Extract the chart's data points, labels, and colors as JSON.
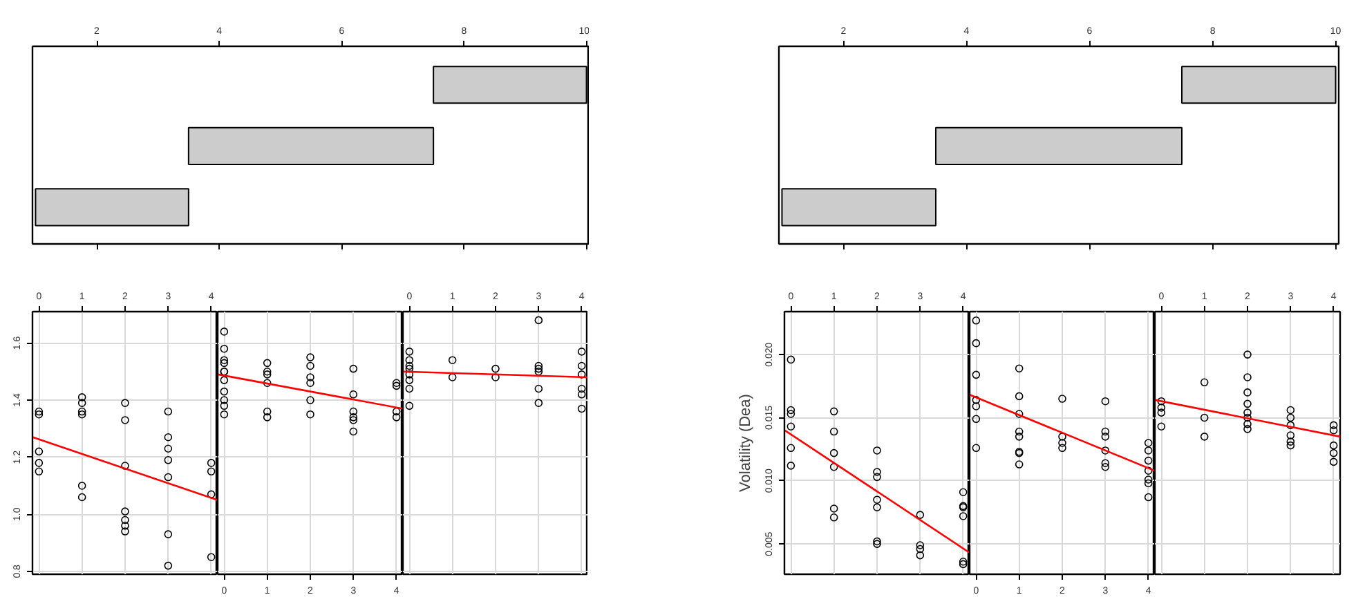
{
  "chart_data": [
    {
      "type": "bar",
      "orientation": "horizontal",
      "categories": [
        null,
        null,
        null
      ],
      "base": [
        7.5,
        3.5,
        1
      ],
      "values": [
        2.5,
        4,
        2.5
      ],
      "color": "#cccccc",
      "xlim": [
        0.95,
        10.05
      ],
      "xticks": [
        2,
        4,
        6,
        8,
        10
      ]
    },
    {
      "type": "bar",
      "orientation": "horizontal",
      "categories": [
        null,
        null,
        null
      ],
      "base": [
        7.5,
        3.5,
        1
      ],
      "values": [
        2.5,
        4,
        2.5
      ],
      "color": "#cccccc",
      "xlim": [
        0.95,
        10.05
      ],
      "xticks": [
        2,
        4,
        6,
        8,
        10
      ]
    },
    {
      "type": "scatter",
      "grid": true,
      "xlim": [
        -0.15,
        4.15
      ],
      "xticks": [
        0,
        1,
        2,
        3,
        4
      ],
      "ylim": [
        0.79,
        1.71
      ],
      "yticks": [
        0.8,
        {
          "value": 1,
          "label": "1.0"
        },
        1.2,
        1.4,
        1.6
      ],
      "series": [
        {
          "type": "scatter",
          "marker": "circle",
          "color": "#000000",
          "x": [
            0,
            0,
            0,
            0,
            0,
            1,
            1,
            1,
            1,
            1,
            1,
            2,
            2,
            2,
            2,
            2,
            2,
            2,
            3,
            3,
            3,
            3,
            3,
            3,
            3,
            4,
            4,
            4,
            4
          ],
          "values": [
            1.36,
            1.35,
            1.22,
            1.18,
            1.15,
            1.41,
            1.39,
            1.36,
            1.35,
            1.1,
            1.06,
            1.39,
            1.33,
            1.17,
            1.01,
            0.98,
            0.96,
            0.94,
            1.36,
            1.27,
            1.23,
            1.19,
            1.13,
            0.93,
            0.82,
            1.18,
            1.15,
            1.07,
            0.85
          ]
        },
        {
          "type": "line",
          "color": "#ff0000",
          "x": [
            -0.14,
            4.15
          ],
          "values": [
            1.27,
            1.05
          ]
        }
      ]
    },
    {
      "type": "scatter",
      "grid": true,
      "tick_labels": "x",
      "xlim": [
        -0.15,
        4.15
      ],
      "xticks": [
        0,
        1,
        2,
        3,
        4
      ],
      "ylim": [
        0.79,
        1.71
      ],
      "yticks": [
        0.8,
        1,
        1.2,
        1.4,
        1.6
      ],
      "series": [
        {
          "type": "scatter",
          "marker": "circle",
          "color": "#000000",
          "x": [
            0,
            0,
            0,
            0,
            0,
            0,
            0,
            0,
            0,
            0,
            0,
            1,
            1,
            1,
            1,
            1,
            1,
            2,
            2,
            2,
            2,
            2,
            2,
            3,
            3,
            3,
            3,
            3,
            3,
            4,
            4,
            4,
            4
          ],
          "values": [
            1.64,
            1.58,
            1.54,
            1.53,
            1.5,
            1.5,
            1.47,
            1.43,
            1.4,
            1.38,
            1.35,
            1.53,
            1.5,
            1.49,
            1.46,
            1.36,
            1.34,
            1.55,
            1.52,
            1.48,
            1.46,
            1.4,
            1.35,
            1.51,
            1.42,
            1.36,
            1.34,
            1.33,
            1.29,
            1.46,
            1.45,
            1.36,
            1.34
          ]
        },
        {
          "type": "line",
          "color": "#ff0000",
          "x": [
            -0.14,
            4.15
          ],
          "values": [
            1.49,
            1.37
          ]
        }
      ]
    },
    {
      "type": "scatter",
      "grid": true,
      "tick_labels": "x",
      "xlim": [
        -0.15,
        4.15
      ],
      "xticks": [
        0,
        1,
        2,
        3,
        4
      ],
      "ylim": [
        0.79,
        1.71
      ],
      "yticks": [
        0.8,
        1,
        1.2,
        1.4,
        1.6
      ],
      "series": [
        {
          "type": "scatter",
          "marker": "circle",
          "color": "#000000",
          "x": [
            0,
            0,
            0,
            0,
            0,
            0,
            0,
            0,
            1,
            1,
            2,
            2,
            3,
            3,
            3,
            3,
            3,
            3,
            4,
            4,
            4,
            4,
            4,
            4
          ],
          "values": [
            1.57,
            1.54,
            1.52,
            1.51,
            1.49,
            1.47,
            1.44,
            1.38,
            1.54,
            1.48,
            1.51,
            1.48,
            1.68,
            1.52,
            1.51,
            1.5,
            1.44,
            1.39,
            1.57,
            1.52,
            1.49,
            1.44,
            1.42,
            1.37
          ]
        },
        {
          "type": "line",
          "color": "#ff0000",
          "x": [
            -0.14,
            4.15
          ],
          "values": [
            1.5,
            1.48
          ]
        }
      ]
    },
    {
      "type": "scatter",
      "grid": true,
      "ylabel": "Volatility (Dea)",
      "xlim": [
        -0.15,
        4.15
      ],
      "xticks": [
        0,
        1,
        2,
        3,
        4
      ],
      "ylim": [
        0.0026,
        0.0234
      ],
      "yticks": [
        0.005,
        {
          "value": 0.01,
          "label": "0.010"
        },
        0.015,
        {
          "value": 0.02,
          "label": "0.020"
        }
      ],
      "series": [
        {
          "type": "scatter",
          "marker": "circle",
          "color": "#000000",
          "x": [
            0,
            0,
            0,
            0,
            0,
            0,
            1,
            1,
            1,
            1,
            1,
            1,
            2,
            2,
            2,
            2,
            2,
            2,
            2,
            3,
            3,
            3,
            3,
            4,
            4,
            4,
            4,
            4,
            4
          ],
          "values": [
            0.0196,
            0.0156,
            0.0153,
            0.0143,
            0.0126,
            0.0112,
            0.0155,
            0.0139,
            0.0122,
            0.0111,
            0.0078,
            0.0071,
            0.0124,
            0.0107,
            0.0103,
            0.0085,
            0.0079,
            0.0052,
            0.005,
            0.0073,
            0.0049,
            0.0046,
            0.0041,
            0.0091,
            0.008,
            0.0079,
            0.0072,
            0.0036,
            0.0034
          ]
        },
        {
          "type": "line",
          "color": "#ff0000",
          "x": [
            -0.14,
            4.15
          ],
          "values": [
            0.014,
            0.0043
          ]
        }
      ]
    },
    {
      "type": "scatter",
      "grid": true,
      "tick_labels": "x",
      "xlim": [
        -0.15,
        4.15
      ],
      "xticks": [
        0,
        1,
        2,
        3,
        4
      ],
      "ylim": [
        0.0026,
        0.0234
      ],
      "yticks": [
        0.005,
        0.01,
        0.015,
        0.02
      ],
      "series": [
        {
          "type": "scatter",
          "marker": "circle",
          "color": "#000000",
          "x": [
            0,
            0,
            0,
            0,
            0,
            0,
            0,
            1,
            1,
            1,
            1,
            1,
            1,
            1,
            1,
            2,
            2,
            2,
            2,
            3,
            3,
            3,
            3,
            3,
            3,
            4,
            4,
            4,
            4,
            4,
            4,
            4
          ],
          "values": [
            0.0227,
            0.0209,
            0.0184,
            0.0164,
            0.0159,
            0.0149,
            0.0126,
            0.0189,
            0.0167,
            0.0153,
            0.0139,
            0.0135,
            0.0123,
            0.0122,
            0.0113,
            0.0165,
            0.0135,
            0.013,
            0.0126,
            0.0163,
            0.0139,
            0.0135,
            0.0124,
            0.0114,
            0.0111,
            0.013,
            0.0124,
            0.0116,
            0.0108,
            0.0101,
            0.0098,
            0.0087
          ]
        },
        {
          "type": "line",
          "color": "#ff0000",
          "x": [
            -0.14,
            4.15
          ],
          "values": [
            0.0168,
            0.0108
          ]
        }
      ]
    },
    {
      "type": "scatter",
      "grid": true,
      "tick_labels": "x",
      "xlim": [
        -0.15,
        4.15
      ],
      "xticks": [
        0,
        1,
        2,
        3,
        4
      ],
      "ylim": [
        0.0026,
        0.0234
      ],
      "yticks": [
        0.005,
        0.01,
        0.015,
        0.02
      ],
      "series": [
        {
          "type": "scatter",
          "marker": "circle",
          "color": "#000000",
          "x": [
            0,
            0,
            0,
            0,
            1,
            1,
            1,
            2,
            2,
            2,
            2,
            2,
            2,
            2,
            2,
            3,
            3,
            3,
            3,
            3,
            3,
            4,
            4,
            4,
            4,
            4
          ],
          "values": [
            0.0163,
            0.0158,
            0.0154,
            0.0143,
            0.0178,
            0.015,
            0.0135,
            0.02,
            0.0182,
            0.017,
            0.0161,
            0.0154,
            0.015,
            0.0145,
            0.0141,
            0.0156,
            0.015,
            0.0144,
            0.0136,
            0.0131,
            0.0128,
            0.0144,
            0.014,
            0.0128,
            0.0122,
            0.0115
          ]
        },
        {
          "type": "line",
          "color": "#ff0000",
          "x": [
            -0.14,
            4.15
          ],
          "values": [
            0.0164,
            0.0135
          ]
        }
      ]
    }
  ]
}
